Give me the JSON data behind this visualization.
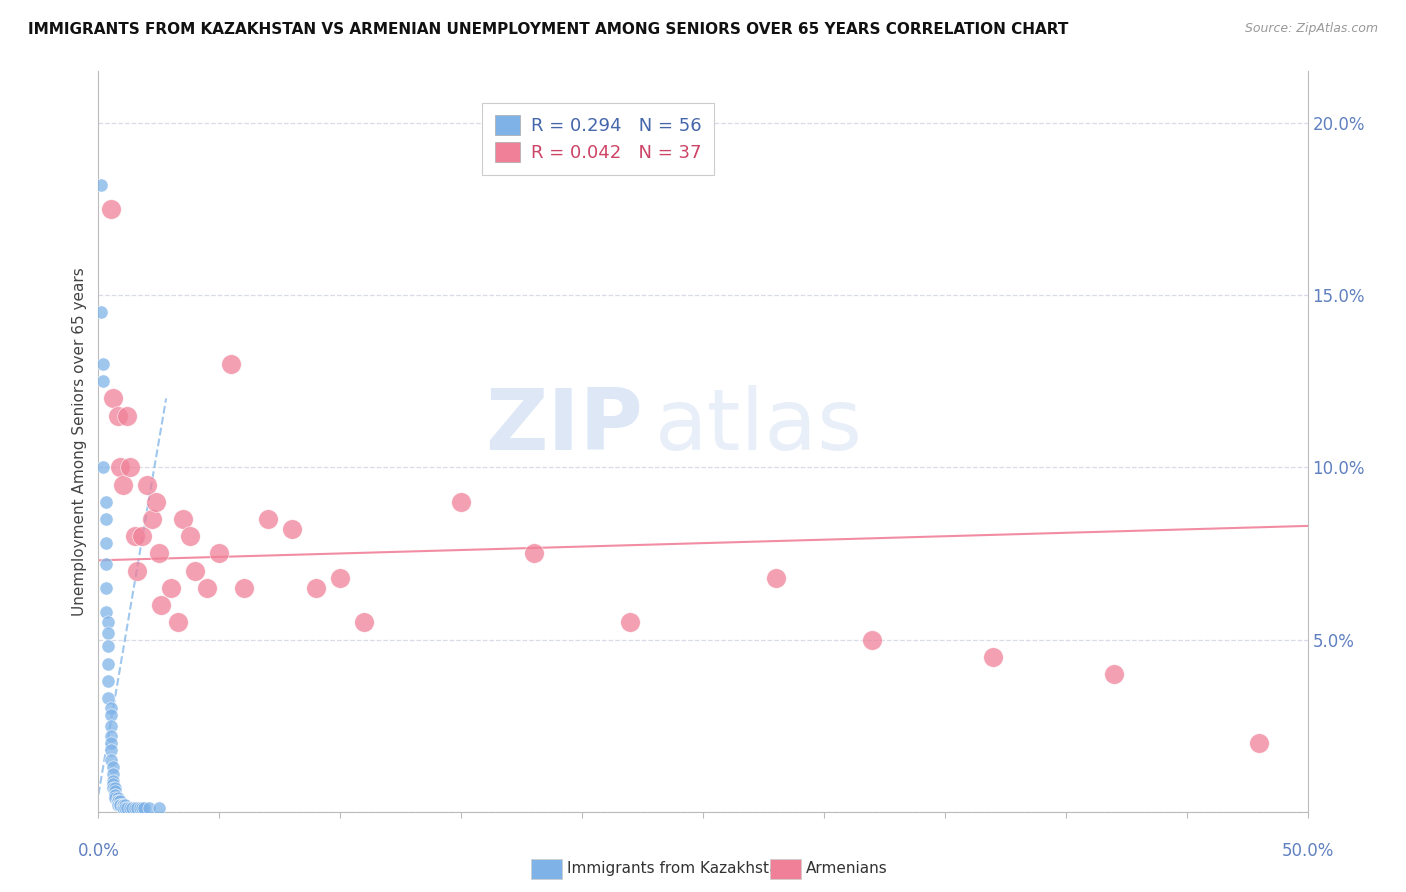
{
  "title": "IMMIGRANTS FROM KAZAKHSTAN VS ARMENIAN UNEMPLOYMENT AMONG SENIORS OVER 65 YEARS CORRELATION CHART",
  "source": "Source: ZipAtlas.com",
  "ylabel": "Unemployment Among Seniors over 65 years",
  "yticks": [
    0.0,
    0.05,
    0.1,
    0.15,
    0.2
  ],
  "ytick_labels": [
    "",
    "5.0%",
    "10.0%",
    "15.0%",
    "20.0%"
  ],
  "xlim": [
    0.0,
    0.5
  ],
  "ylim": [
    0.0,
    0.215
  ],
  "watermark_zip": "ZIP",
  "watermark_atlas": "atlas",
  "kaz_scatter_x": [
    0.001,
    0.001,
    0.002,
    0.002,
    0.002,
    0.003,
    0.003,
    0.003,
    0.003,
    0.003,
    0.003,
    0.004,
    0.004,
    0.004,
    0.004,
    0.004,
    0.004,
    0.005,
    0.005,
    0.005,
    0.005,
    0.005,
    0.005,
    0.005,
    0.006,
    0.006,
    0.006,
    0.006,
    0.006,
    0.007,
    0.007,
    0.007,
    0.007,
    0.007,
    0.008,
    0.008,
    0.008,
    0.008,
    0.009,
    0.009,
    0.009,
    0.01,
    0.01,
    0.01,
    0.011,
    0.011,
    0.012,
    0.013,
    0.014,
    0.015,
    0.016,
    0.017,
    0.018,
    0.019,
    0.021,
    0.025
  ],
  "kaz_scatter_y": [
    0.182,
    0.145,
    0.13,
    0.125,
    0.1,
    0.09,
    0.085,
    0.078,
    0.072,
    0.065,
    0.058,
    0.055,
    0.052,
    0.048,
    0.043,
    0.038,
    0.033,
    0.03,
    0.028,
    0.025,
    0.022,
    0.02,
    0.018,
    0.015,
    0.013,
    0.011,
    0.009,
    0.008,
    0.007,
    0.007,
    0.006,
    0.005,
    0.005,
    0.004,
    0.004,
    0.003,
    0.003,
    0.002,
    0.003,
    0.002,
    0.002,
    0.002,
    0.002,
    0.001,
    0.002,
    0.001,
    0.001,
    0.001,
    0.001,
    0.001,
    0.001,
    0.001,
    0.001,
    0.001,
    0.001,
    0.001
  ],
  "arm_scatter_x": [
    0.005,
    0.006,
    0.008,
    0.009,
    0.01,
    0.012,
    0.013,
    0.015,
    0.016,
    0.018,
    0.02,
    0.022,
    0.024,
    0.025,
    0.026,
    0.03,
    0.033,
    0.035,
    0.038,
    0.04,
    0.045,
    0.05,
    0.055,
    0.06,
    0.07,
    0.08,
    0.09,
    0.1,
    0.11,
    0.15,
    0.18,
    0.22,
    0.28,
    0.32,
    0.37,
    0.42,
    0.48
  ],
  "arm_scatter_y": [
    0.175,
    0.12,
    0.115,
    0.1,
    0.095,
    0.115,
    0.1,
    0.08,
    0.07,
    0.08,
    0.095,
    0.085,
    0.09,
    0.075,
    0.06,
    0.065,
    0.055,
    0.085,
    0.08,
    0.07,
    0.065,
    0.075,
    0.13,
    0.065,
    0.085,
    0.082,
    0.065,
    0.068,
    0.055,
    0.09,
    0.075,
    0.055,
    0.068,
    0.05,
    0.045,
    0.04,
    0.02
  ],
  "kaz_color": "#7fb3e8",
  "arm_color": "#f08098",
  "kaz_trend_x": [
    0.0,
    0.028
  ],
  "kaz_trend_y": [
    0.005,
    0.12
  ],
  "arm_trend_x": [
    0.0,
    0.5
  ],
  "arm_trend_y": [
    0.073,
    0.083
  ],
  "kaz_trend_color": "#7fb3e8",
  "arm_trend_color": "#f08098",
  "bg_color": "#ffffff",
  "grid_color": "#d8dce8",
  "axis_color": "#bbbbbb",
  "tick_color": "#6080c0",
  "title_color": "#111111",
  "source_color": "#999999",
  "legend_r1": "0.294",
  "legend_n1": "56",
  "legend_r2": "0.042",
  "legend_n2": "37"
}
